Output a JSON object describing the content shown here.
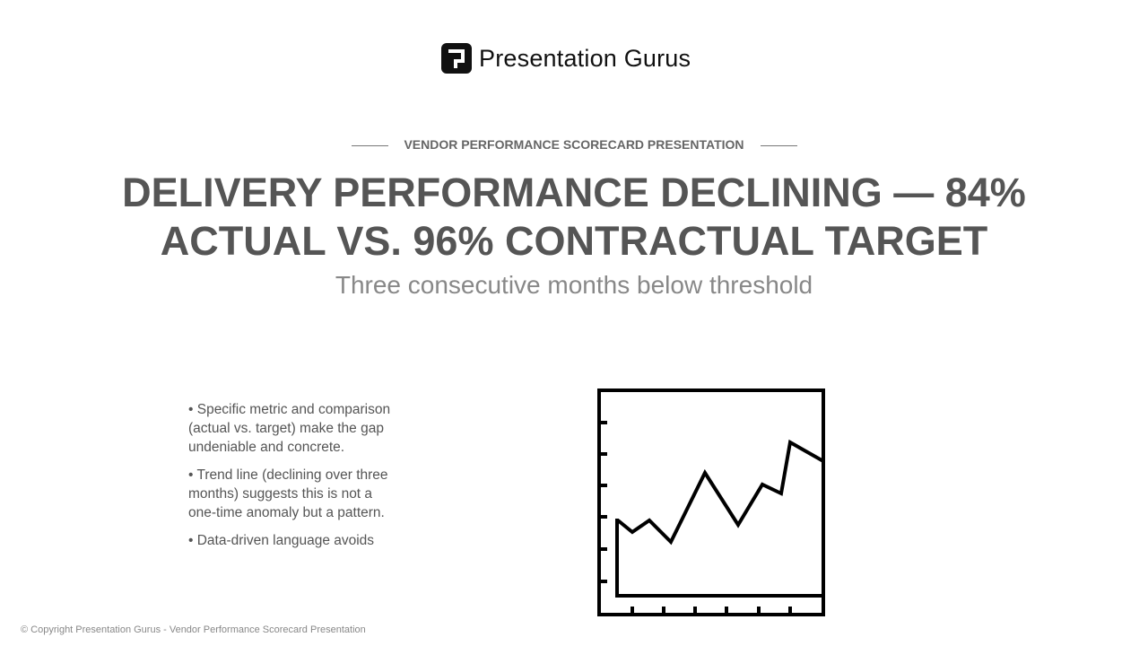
{
  "header": {
    "brand": "Presentation Gurus"
  },
  "slide": {
    "eyebrow": "VENDOR PERFORMANCE SCORECARD PRESENTATION",
    "title_lines": [
      "DELIVERY PERFORMANCE DECLINING — 84%",
      "ACTUAL VS. 96% CONTRACTUAL TARGET"
    ],
    "subtitle": "Three consecutive months below threshold",
    "bullets": [
      "• Specific metric and comparison (actual vs. target) make the gap undeniable and concrete.",
      "• Trend line (declining over three months) suggests this is not a one-time anomaly but a pattern.",
      "• Data-driven language avoids"
    ]
  },
  "footer": {
    "copyright": "© Copyright Presentation Gurus - Vendor Performance Scorecard Presentation"
  }
}
